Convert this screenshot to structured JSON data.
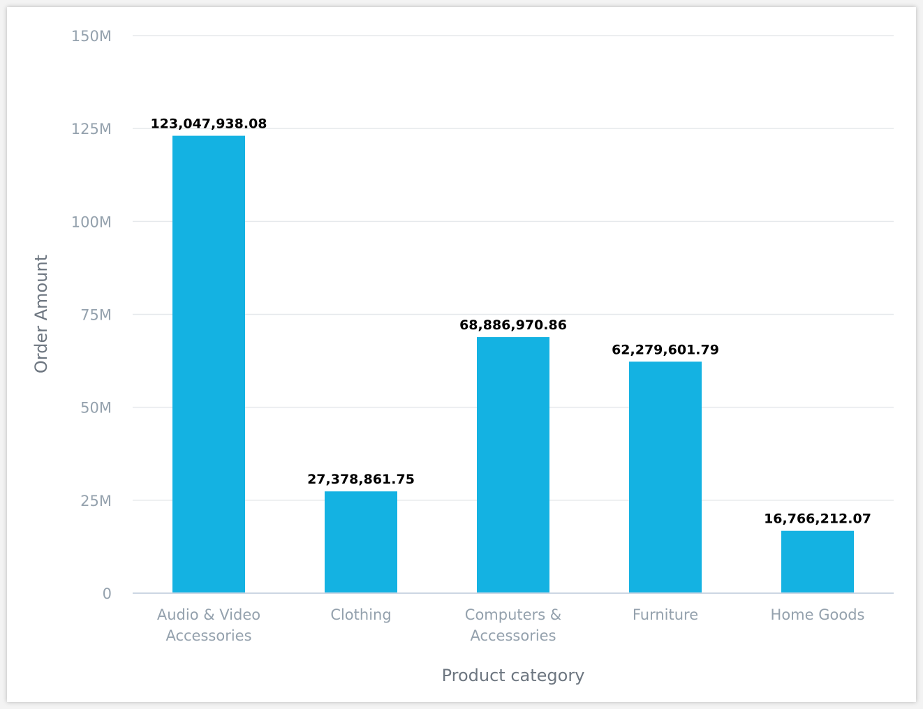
{
  "chart_data": {
    "type": "bar",
    "title": "",
    "xlabel": "Product category",
    "ylabel": "Order Amount",
    "categories": [
      [
        "Audio & Video",
        "Accessories"
      ],
      [
        "Clothing"
      ],
      [
        "Computers &",
        "Accessories"
      ],
      [
        "Furniture"
      ],
      [
        "Home Goods"
      ]
    ],
    "values": [
      123047938.08,
      27378861.75,
      68886970.86,
      62279601.79,
      16766212.07
    ],
    "data_labels": [
      "123,047,938.08",
      "27,378,861.75",
      "68,886,970.86",
      "62,279,601.79",
      "16,766,212.07"
    ],
    "ylim": [
      0,
      150000000
    ],
    "yticks": [
      0,
      25000000,
      50000000,
      75000000,
      100000000,
      125000000,
      150000000
    ],
    "ytick_labels": [
      "0",
      "25M",
      "50M",
      "75M",
      "100M",
      "125M",
      "150M"
    ],
    "grid": true,
    "bar_color": "#14b2e2",
    "grid_color": "#e6e9ec",
    "axis_color": "#ccd6e3"
  }
}
